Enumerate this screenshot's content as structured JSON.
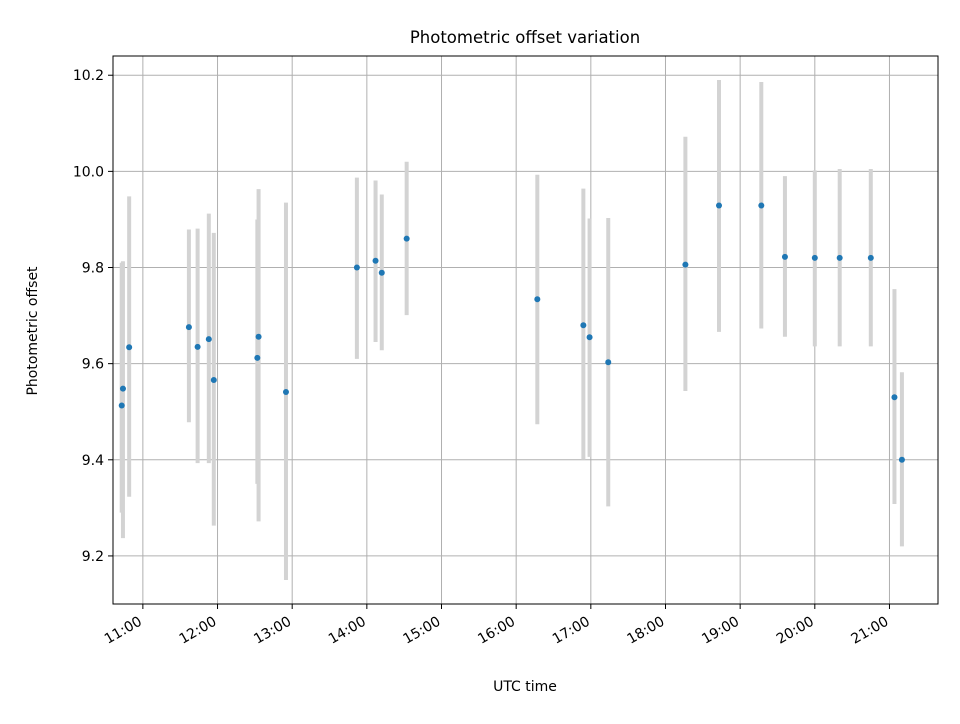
{
  "chart_data": {
    "type": "scatter",
    "title": "Photometric offset variation",
    "xlabel": "UTC time",
    "ylabel": "Photometric offset",
    "xlim": [
      "10:36",
      "21:39"
    ],
    "ylim": [
      9.1,
      10.24
    ],
    "x_ticks": [
      "11:00",
      "12:00",
      "13:00",
      "14:00",
      "15:00",
      "16:00",
      "17:00",
      "18:00",
      "19:00",
      "20:00",
      "21:00"
    ],
    "y_ticks": [
      "9.2",
      "9.4",
      "9.6",
      "9.8",
      "10.0",
      "10.2"
    ],
    "grid": true,
    "points": [
      {
        "x": "10:43",
        "y": 9.513,
        "err_low": 9.29,
        "err_high": 9.81
      },
      {
        "x": "10:44",
        "y": 9.548,
        "err_low": 9.237,
        "err_high": 9.813
      },
      {
        "x": "10:49",
        "y": 9.634,
        "err_low": 9.323,
        "err_high": 9.948
      },
      {
        "x": "11:37",
        "y": 9.676,
        "err_low": 9.478,
        "err_high": 9.879
      },
      {
        "x": "11:44",
        "y": 9.635,
        "err_low": 9.393,
        "err_high": 9.881
      },
      {
        "x": "11:53",
        "y": 9.651,
        "err_low": 9.393,
        "err_high": 9.912
      },
      {
        "x": "11:57",
        "y": 9.566,
        "err_low": 9.263,
        "err_high": 9.872
      },
      {
        "x": "12:32",
        "y": 9.612,
        "err_low": 9.35,
        "err_high": 9.9
      },
      {
        "x": "12:33",
        "y": 9.656,
        "err_low": 9.272,
        "err_high": 9.963
      },
      {
        "x": "12:55",
        "y": 9.541,
        "err_low": 9.15,
        "err_high": 9.935
      },
      {
        "x": "13:52",
        "y": 9.8,
        "err_low": 9.61,
        "err_high": 9.987
      },
      {
        "x": "14:07",
        "y": 9.814,
        "err_low": 9.645,
        "err_high": 9.981
      },
      {
        "x": "14:12",
        "y": 9.789,
        "err_low": 9.628,
        "err_high": 9.952
      },
      {
        "x": "14:32",
        "y": 9.86,
        "err_low": 9.701,
        "err_high": 10.02
      },
      {
        "x": "16:17",
        "y": 9.734,
        "err_low": 9.474,
        "err_high": 9.993
      },
      {
        "x": "16:54",
        "y": 9.68,
        "err_low": 9.4,
        "err_high": 9.964
      },
      {
        "x": "16:59",
        "y": 9.655,
        "err_low": 9.406,
        "err_high": 9.902
      },
      {
        "x": "17:14",
        "y": 9.603,
        "err_low": 9.303,
        "err_high": 9.903
      },
      {
        "x": "18:16",
        "y": 9.806,
        "err_low": 9.543,
        "err_high": 10.072
      },
      {
        "x": "18:43",
        "y": 9.929,
        "err_low": 9.666,
        "err_high": 10.19
      },
      {
        "x": "19:17",
        "y": 9.929,
        "err_low": 9.673,
        "err_high": 10.186
      },
      {
        "x": "19:36",
        "y": 9.822,
        "err_low": 9.656,
        "err_high": 9.99
      },
      {
        "x": "20:00",
        "y": 9.82,
        "err_low": 9.636,
        "err_high": 10.002
      },
      {
        "x": "20:20",
        "y": 9.82,
        "err_low": 9.636,
        "err_high": 10.005
      },
      {
        "x": "20:45",
        "y": 9.82,
        "err_low": 9.636,
        "err_high": 10.005
      },
      {
        "x": "21:04",
        "y": 9.53,
        "err_low": 9.308,
        "err_high": 9.755
      },
      {
        "x": "21:10",
        "y": 9.4,
        "err_low": 9.22,
        "err_high": 9.582
      }
    ],
    "colors": {
      "marker": "#1f77b4",
      "errorbar": "#d3d3d3",
      "grid": "#b0b0b0",
      "axes": "#000000"
    }
  }
}
